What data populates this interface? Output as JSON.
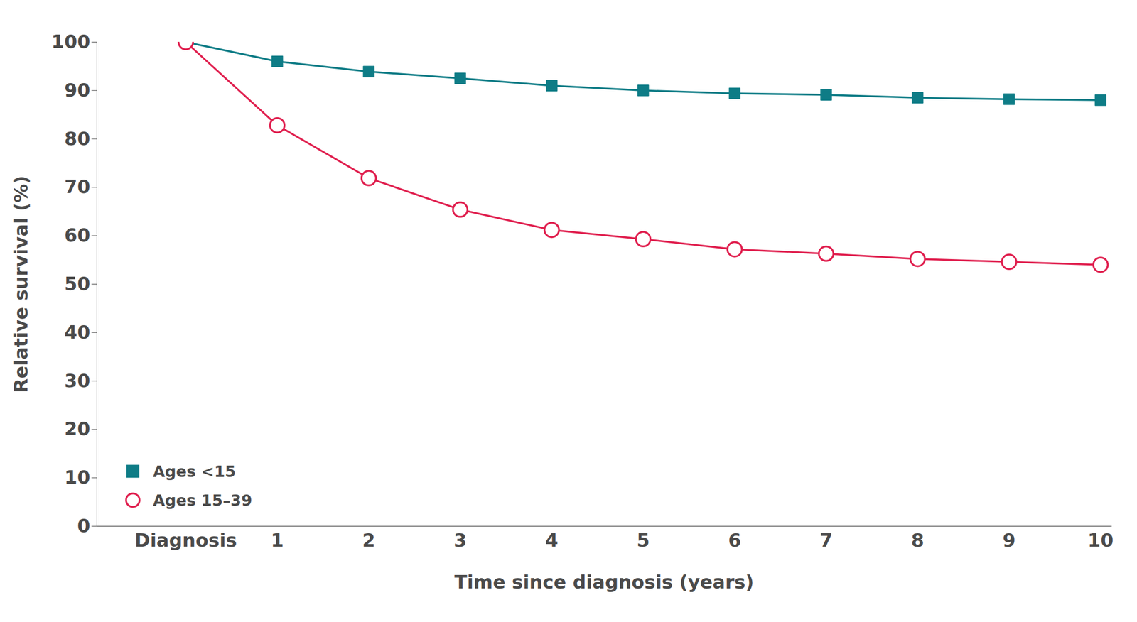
{
  "chart_data": {
    "type": "line",
    "x_label": "Time since diagnosis (years)",
    "y_label": "Relative survival (%)",
    "categories": [
      "Diagnosis",
      "1",
      "2",
      "3",
      "4",
      "5",
      "6",
      "7",
      "8",
      "9",
      "10"
    ],
    "series": [
      {
        "name": "Ages <15",
        "color": "#0e7c86",
        "marker": "square",
        "values": [
          100,
          96.0,
          93.9,
          92.5,
          91.0,
          90.0,
          89.4,
          89.1,
          88.5,
          88.2,
          88.0
        ]
      },
      {
        "name": "Ages 15–39",
        "color": "#e0204f",
        "marker": "open-circle",
        "values": [
          100,
          82.8,
          71.9,
          65.4,
          61.2,
          59.3,
          57.2,
          56.3,
          55.2,
          54.6,
          54.0
        ]
      }
    ],
    "ylim": [
      0,
      100
    ],
    "yticks": [
      0,
      10,
      20,
      30,
      40,
      50,
      60,
      70,
      80,
      90,
      100
    ],
    "grid": false,
    "legend": "lower left"
  }
}
